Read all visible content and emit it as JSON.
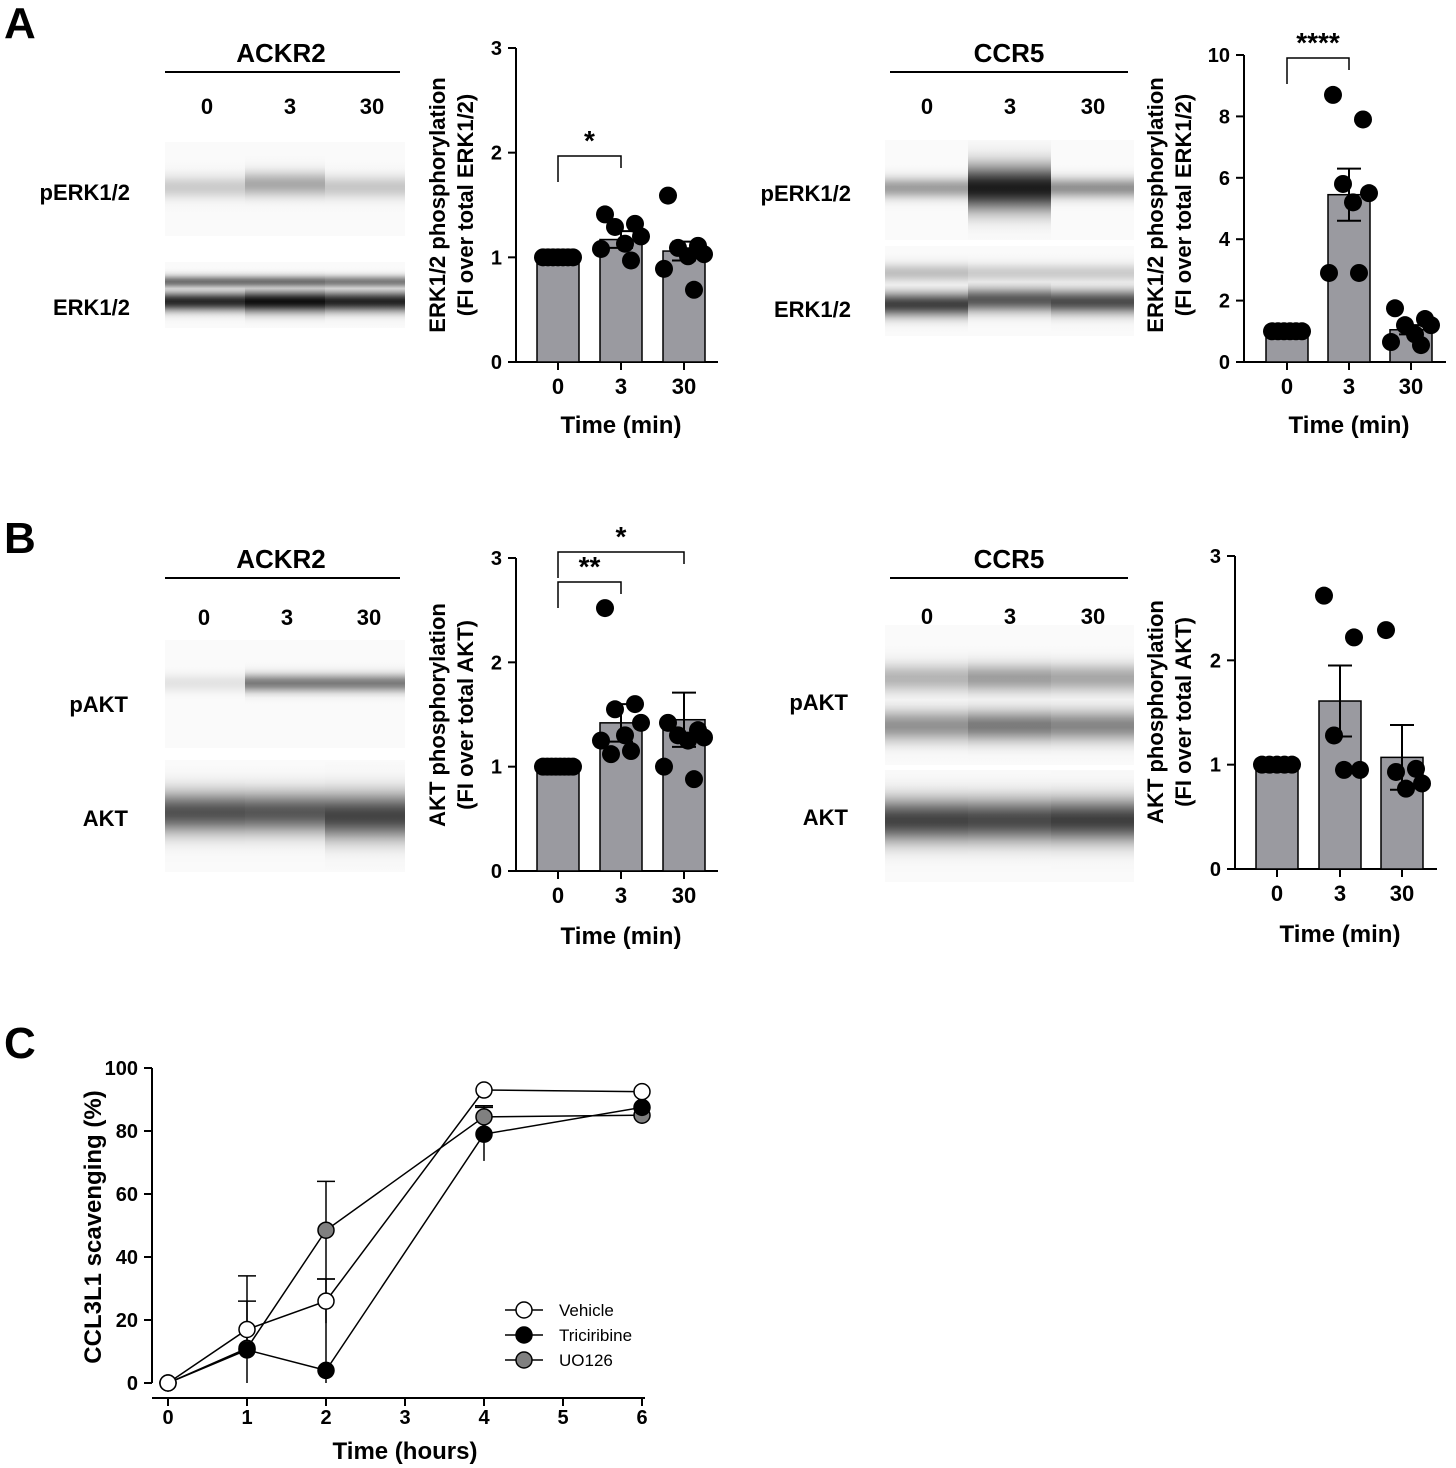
{
  "panels": {
    "A": {
      "letter": "A",
      "left_blot": {
        "title": "ACKR2",
        "lanes": [
          "0",
          "3",
          "30"
        ],
        "rows": [
          {
            "label": "pERK1/2",
            "bands": [
              {
                "center": 0.48,
                "width": 0.12,
                "intensity": 0.2
              },
              {
                "center": 0.45,
                "width": 0.13,
                "intensity": 0.35
              },
              {
                "center": 0.48,
                "width": 0.12,
                "intensity": 0.22
              }
            ]
          },
          {
            "label": "ERK1/2",
            "bands": [
              {
                "center": 0.3,
                "width": 0.09,
                "intensity": 0.6
              },
              {
                "center": 0.6,
                "width": 0.14,
                "intensity": 0.9
              },
              {
                "center": 0.3,
                "width": 0.09,
                "intensity": 0.6
              },
              {
                "center": 0.6,
                "width": 0.16,
                "intensity": 1.0
              },
              {
                "center": 0.3,
                "width": 0.09,
                "intensity": 0.55
              },
              {
                "center": 0.6,
                "width": 0.15,
                "intensity": 0.92
              }
            ]
          }
        ]
      },
      "left_chart": {
        "ylabel_line1": "ERK1/2 phosphorylation",
        "ylabel_line2": "(FI over total ERK1/2)",
        "xlabel": "Time (min)",
        "ticks": [
          "0",
          "1",
          "2",
          "3"
        ],
        "sig": [
          {
            "text": "*",
            "from": "0",
            "to": "3"
          }
        ]
      },
      "right_blot": {
        "title": "CCR5",
        "lanes": [
          "0",
          "3",
          "30"
        ],
        "rows": [
          {
            "label": "pERK1/2",
            "bands": [
              {
                "center": 0.48,
                "width": 0.1,
                "intensity": 0.4
              },
              {
                "center": 0.48,
                "width": 0.22,
                "intensity": 0.95
              },
              {
                "center": 0.48,
                "width": 0.1,
                "intensity": 0.45
              }
            ]
          },
          {
            "label": "ERK1/2",
            "bands": [
              {
                "center": 0.3,
                "width": 0.1,
                "intensity": 0.25
              },
              {
                "center": 0.65,
                "width": 0.13,
                "intensity": 0.8
              },
              {
                "center": 0.3,
                "width": 0.1,
                "intensity": 0.2
              },
              {
                "center": 0.6,
                "width": 0.13,
                "intensity": 0.7
              },
              {
                "center": 0.3,
                "width": 0.1,
                "intensity": 0.2
              },
              {
                "center": 0.62,
                "width": 0.13,
                "intensity": 0.75
              }
            ]
          }
        ]
      },
      "right_chart": {
        "ylabel_line1": "ERK1/2 phosphorylation",
        "ylabel_line2": "(FI over total ERK1/2)",
        "xlabel": "Time (min)",
        "ticks": [
          "0",
          "2",
          "4",
          "6",
          "8",
          "10"
        ],
        "sig": [
          {
            "text": "****",
            "from": "0",
            "to": "3"
          }
        ]
      }
    },
    "B": {
      "letter": "B",
      "left_blot": {
        "title": "ACKR2",
        "lanes": [
          "0",
          "3",
          "30"
        ],
        "rows": [
          {
            "label": "pAKT",
            "bands": [
              {
                "center": 0.4,
                "width": 0.08,
                "intensity": 0.1
              },
              {
                "center": 0.4,
                "width": 0.08,
                "intensity": 0.55
              },
              {
                "center": 0.4,
                "width": 0.08,
                "intensity": 0.55
              }
            ]
          },
          {
            "label": "AKT",
            "bands": [
              {
                "center": 0.47,
                "width": 0.18,
                "intensity": 0.72
              },
              {
                "center": 0.47,
                "width": 0.18,
                "intensity": 0.7
              },
              {
                "center": 0.5,
                "width": 0.2,
                "intensity": 0.78
              }
            ]
          }
        ]
      },
      "left_chart": {
        "ylabel_line1": "AKT phosphorylation",
        "ylabel_line2": "(FI over total AKT)",
        "xlabel": "Time (min)",
        "ticks": [
          "0",
          "1",
          "2",
          "3"
        ],
        "sig": [
          {
            "text": "**",
            "from": "0",
            "to": "3"
          },
          {
            "text": "*",
            "from": "0",
            "to": "30"
          }
        ]
      },
      "right_blot": {
        "title": "CCR5",
        "lanes": [
          "0",
          "3",
          "30"
        ],
        "rows": [
          {
            "label": "pAKT",
            "bands": [
              {
                "center": 0.38,
                "width": 0.1,
                "intensity": 0.3
              },
              {
                "center": 0.72,
                "width": 0.11,
                "intensity": 0.45
              },
              {
                "center": 0.38,
                "width": 0.1,
                "intensity": 0.4
              },
              {
                "center": 0.72,
                "width": 0.11,
                "intensity": 0.55
              },
              {
                "center": 0.38,
                "width": 0.1,
                "intensity": 0.36
              },
              {
                "center": 0.72,
                "width": 0.11,
                "intensity": 0.5
              }
            ]
          },
          {
            "label": "AKT",
            "bands": [
              {
                "center": 0.45,
                "width": 0.19,
                "intensity": 0.78
              },
              {
                "center": 0.45,
                "width": 0.19,
                "intensity": 0.76
              },
              {
                "center": 0.45,
                "width": 0.19,
                "intensity": 0.8
              }
            ]
          }
        ]
      },
      "right_chart": {
        "ylabel_line1": "AKT phosphorylation",
        "ylabel_line2": "(FI over total AKT)",
        "xlabel": "Time (min)",
        "ticks": [
          "0",
          "1",
          "2",
          "3"
        ],
        "sig": []
      }
    },
    "C": {
      "letter": "C",
      "xlabel": "Time (hours)",
      "ylabel": "CCL3L1 scavenging (%)",
      "xticks": [
        "0",
        "1",
        "2",
        "3",
        "4",
        "5",
        "6"
      ],
      "yticks": [
        "0",
        "20",
        "40",
        "60",
        "80",
        "100"
      ]
    }
  },
  "chart_data": [
    {
      "type": "bar",
      "id": "A-ACKR2",
      "title": "ACKR2",
      "categories": [
        "0",
        "3",
        "30"
      ],
      "values": [
        1.0,
        1.17,
        1.06
      ],
      "errors": [
        0.0,
        0.08,
        0.09
      ],
      "points": [
        [
          1.0,
          1.0,
          1.0,
          1.0,
          1.0,
          1.0,
          1.0
        ],
        [
          1.41,
          1.32,
          1.29,
          1.2,
          1.13,
          1.08,
          0.97
        ],
        [
          1.59,
          1.11,
          1.09,
          1.03,
          1.01,
          0.89,
          0.69
        ]
      ],
      "xlabel": "Time (min)",
      "ylabel": "ERK1/2 phosphorylation (FI over total ERK1/2)",
      "ylim": [
        0,
        3
      ]
    },
    {
      "type": "bar",
      "id": "A-CCR5",
      "title": "CCR5",
      "categories": [
        "0",
        "3",
        "30"
      ],
      "values": [
        1.0,
        5.45,
        1.05
      ],
      "errors": [
        0.0,
        0.85,
        0.15
      ],
      "points": [
        [
          1.0,
          1.0,
          1.0,
          1.0,
          1.0,
          1.0
        ],
        [
          8.7,
          7.9,
          5.8,
          5.5,
          5.2,
          2.9,
          2.9
        ],
        [
          1.75,
          1.4,
          1.2,
          1.2,
          0.9,
          0.65,
          0.55
        ]
      ],
      "xlabel": "Time (min)",
      "ylabel": "ERK1/2 phosphorylation (FI over total ERK1/2)",
      "ylim": [
        0,
        10
      ]
    },
    {
      "type": "bar",
      "id": "B-ACKR2",
      "title": "ACKR2",
      "categories": [
        "0",
        "3",
        "30"
      ],
      "values": [
        1.0,
        1.42,
        1.45
      ],
      "errors": [
        0.0,
        0.18,
        0.26
      ],
      "points": [
        [
          1.0,
          1.0,
          1.0,
          1.0,
          1.0,
          1.0,
          1.0,
          1.0
        ],
        [
          2.52,
          1.6,
          1.55,
          1.42,
          1.3,
          1.25,
          1.15,
          1.12
        ],
        [
          1.42,
          1.35,
          1.3,
          1.28,
          1.25,
          1.0,
          0.88
        ]
      ],
      "xlabel": "Time (min)",
      "ylabel": "AKT phosphorylation (FI over total AKT)",
      "ylim": [
        0,
        3
      ]
    },
    {
      "type": "bar",
      "id": "B-CCR5",
      "title": "CCR5",
      "categories": [
        "0",
        "3",
        "30"
      ],
      "values": [
        1.0,
        1.61,
        1.07
      ],
      "errors": [
        0.0,
        0.34,
        0.31
      ],
      "points": [
        [
          1.0,
          1.0,
          1.0,
          1.0,
          1.0
        ],
        [
          2.62,
          2.22,
          1.28,
          0.95,
          0.95
        ],
        [
          2.29,
          0.96,
          0.93,
          0.82,
          0.77
        ]
      ],
      "xlabel": "Time (min)",
      "ylabel": "AKT phosphorylation (FI over total AKT)",
      "ylim": [
        0,
        3
      ]
    },
    {
      "type": "line",
      "id": "C",
      "x": [
        0,
        1,
        2,
        4,
        6
      ],
      "series": [
        {
          "name": "Vehicle",
          "values": [
            0,
            17,
            26,
            93,
            92.5
          ],
          "errors": [
            0,
            9,
            7,
            0,
            0
          ],
          "color": "#ffffff"
        },
        {
          "name": "Triciribine",
          "values": [
            0,
            10.5,
            4,
            79,
            87.5
          ],
          "errors": [
            0,
            0,
            29,
            8.5,
            0
          ],
          "color": "#000000"
        },
        {
          "name": "UO126",
          "values": [
            0,
            11,
            48.5,
            84.5,
            85
          ],
          "errors": [
            0,
            23,
            15.5,
            3.5,
            0
          ],
          "color": "#808080"
        }
      ],
      "xlabel": "Time (hours)",
      "ylabel": "CCL3L1 scavenging (%)",
      "xlim": [
        0,
        6
      ],
      "ylim": [
        0,
        100
      ]
    }
  ],
  "colors": {
    "bar_fill": "#9a9aa0",
    "ink": "#000000",
    "uo126": "#808080"
  }
}
